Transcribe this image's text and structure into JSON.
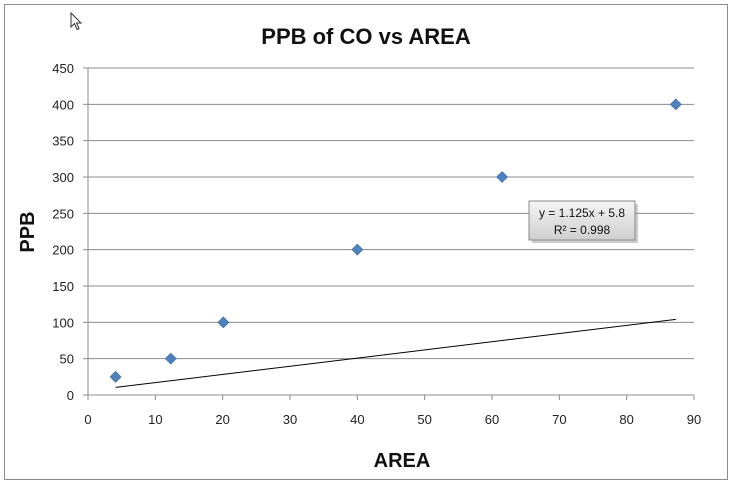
{
  "chart_data": {
    "type": "scatter",
    "title": "PPB of CO vs  AREA",
    "xlabel": "AREA",
    "ylabel": "PPB",
    "xlim": [
      0,
      90
    ],
    "ylim": [
      0,
      450
    ],
    "xticks": [
      0,
      10,
      20,
      30,
      40,
      50,
      60,
      70,
      80,
      90
    ],
    "yticks": [
      0,
      50,
      100,
      150,
      200,
      250,
      300,
      350,
      400,
      450
    ],
    "grid": "horizontal",
    "series": [
      {
        "marker": "diamond",
        "color": "#4f81bd",
        "x": [
          4.1,
          12.3,
          20.1,
          40.0,
          61.5,
          87.3
        ],
        "y": [
          25,
          50,
          100,
          200,
          300,
          400
        ]
      }
    ],
    "trendline": {
      "type": "linear",
      "slope": 1.125,
      "intercept": 5.8,
      "x_range": [
        4.1,
        87.3
      ],
      "equation": "y = 1.125x + 5.8",
      "r_squared": "R² = 0.998"
    }
  }
}
